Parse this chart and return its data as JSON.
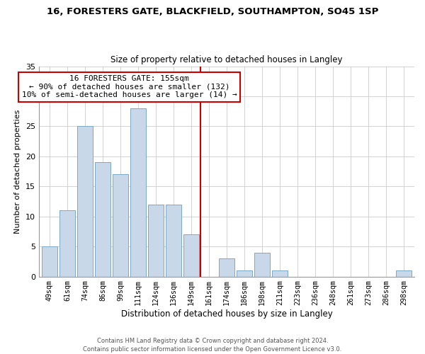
{
  "title1": "16, FORESTERS GATE, BLACKFIELD, SOUTHAMPTON, SO45 1SP",
  "title2": "Size of property relative to detached houses in Langley",
  "xlabel": "Distribution of detached houses by size in Langley",
  "ylabel": "Number of detached properties",
  "bar_labels": [
    "49sqm",
    "61sqm",
    "74sqm",
    "86sqm",
    "99sqm",
    "111sqm",
    "124sqm",
    "136sqm",
    "149sqm",
    "161sqm",
    "174sqm",
    "186sqm",
    "198sqm",
    "211sqm",
    "223sqm",
    "236sqm",
    "248sqm",
    "261sqm",
    "273sqm",
    "286sqm",
    "298sqm"
  ],
  "bar_values": [
    5,
    11,
    25,
    19,
    17,
    28,
    12,
    12,
    7,
    0,
    3,
    1,
    4,
    1,
    0,
    0,
    0,
    0,
    0,
    0,
    1
  ],
  "bar_color": "#c8d8e8",
  "bar_edge_color": "#7aa8c8",
  "vline_x_idx": 8.5,
  "vline_color": "#cc0000",
  "annotation_line1": "16 FORESTERS GATE: 155sqm",
  "annotation_line2": "← 90% of detached houses are smaller (132)",
  "annotation_line3": "10% of semi-detached houses are larger (14) →",
  "annotation_box_color": "#ffffff",
  "annotation_box_edge": "#cc0000",
  "ylim": [
    0,
    35
  ],
  "yticks": [
    0,
    5,
    10,
    15,
    20,
    25,
    30,
    35
  ],
  "footer1": "Contains HM Land Registry data © Crown copyright and database right 2024.",
  "footer2": "Contains public sector information licensed under the Open Government Licence v3.0.",
  "bg_color": "#ffffff",
  "grid_color": "#cccccc"
}
